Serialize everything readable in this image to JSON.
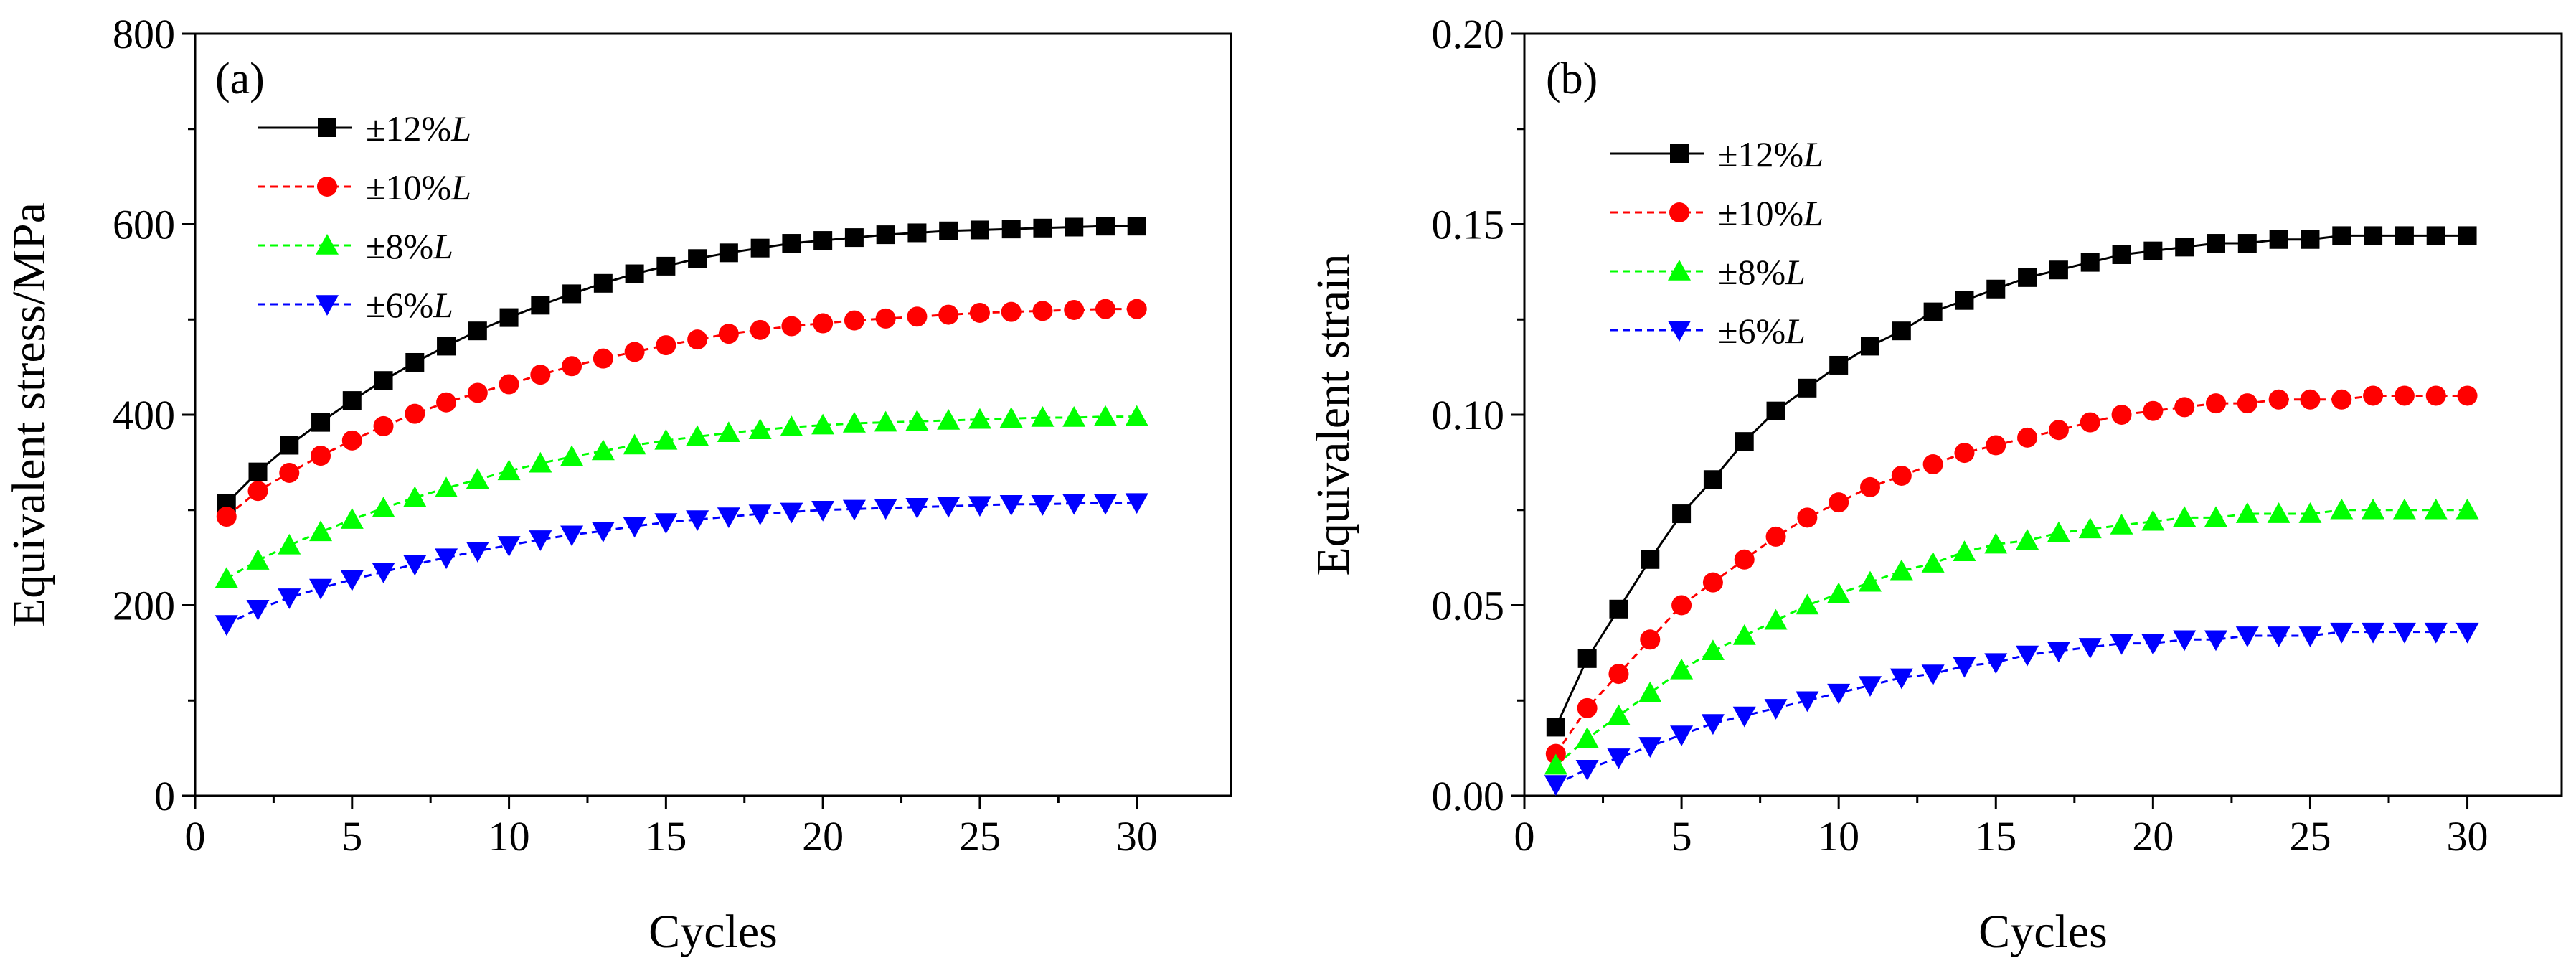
{
  "chart_data": [
    {
      "type": "line",
      "panel_label": "(a)",
      "title": "",
      "xlabel": "Cycles",
      "ylabel": "Equivalent stress/MPa",
      "xlim": [
        0,
        33
      ],
      "ylim": [
        0,
        800
      ],
      "xticks": [
        0,
        5,
        10,
        15,
        20,
        25,
        30
      ],
      "yticks": [
        0,
        200,
        400,
        600,
        800
      ],
      "grid": false,
      "legend": "top-left",
      "x": [
        1,
        2,
        3,
        4,
        5,
        6,
        7,
        8,
        9,
        10,
        11,
        12,
        13,
        14,
        15,
        16,
        17,
        18,
        19,
        20,
        21,
        22,
        23,
        24,
        25,
        26,
        27,
        28,
        29,
        30
      ],
      "series": [
        {
          "name": "±12%",
          "suffix": "L",
          "color": "#000000",
          "marker": "square",
          "line": "solid",
          "values": [
            307,
            340,
            368,
            392,
            415,
            436,
            455,
            472,
            488,
            502,
            515,
            527,
            538,
            548,
            556,
            564,
            570,
            575,
            580,
            583,
            586,
            589,
            591,
            593,
            594,
            595,
            596,
            597,
            598,
            598
          ]
        },
        {
          "name": "±10%",
          "suffix": "L",
          "color": "#ff0000",
          "marker": "circle",
          "line": "dashed",
          "values": [
            293,
            320,
            339,
            357,
            373,
            388,
            401,
            413,
            423,
            432,
            442,
            451,
            459,
            466,
            473,
            479,
            485,
            489,
            493,
            496,
            499,
            501,
            503,
            505,
            507,
            508,
            509,
            510,
            511,
            511
          ]
        },
        {
          "name": "±8%",
          "suffix": "L",
          "color": "#00ff00",
          "marker": "triangle-up",
          "line": "dashed",
          "values": [
            228,
            247,
            263,
            277,
            290,
            302,
            313,
            323,
            332,
            341,
            349,
            356,
            362,
            368,
            373,
            377,
            381,
            384,
            387,
            389,
            391,
            392,
            393,
            394,
            395,
            396,
            397,
            397,
            398,
            398
          ]
        },
        {
          "name": "±6%",
          "suffix": "L",
          "color": "#0000ff",
          "marker": "triangle-down",
          "line": "dashed",
          "values": [
            180,
            196,
            208,
            218,
            227,
            235,
            243,
            250,
            257,
            263,
            269,
            274,
            278,
            283,
            287,
            290,
            293,
            296,
            298,
            300,
            301,
            302,
            303,
            304,
            305,
            306,
            306,
            307,
            307,
            308
          ]
        }
      ]
    },
    {
      "type": "line",
      "panel_label": "(b)",
      "title": "",
      "xlabel": "Cycles",
      "ylabel": "Equivalent strain",
      "xlim": [
        0,
        33
      ],
      "ylim": [
        0,
        0.2
      ],
      "xticks": [
        0,
        5,
        10,
        15,
        20,
        25,
        30
      ],
      "yticks": [
        0,
        0.05,
        0.1,
        0.15,
        0.2
      ],
      "ytick_labels": [
        "0.00",
        "0.05",
        "0.10",
        "0.15",
        "0.20"
      ],
      "grid": false,
      "legend": "top-left",
      "x": [
        1,
        2,
        3,
        4,
        5,
        6,
        7,
        8,
        9,
        10,
        11,
        12,
        13,
        14,
        15,
        16,
        17,
        18,
        19,
        20,
        21,
        22,
        23,
        24,
        25,
        26,
        27,
        28,
        29,
        30
      ],
      "series": [
        {
          "name": "±12%",
          "suffix": "L",
          "color": "#000000",
          "marker": "square",
          "line": "solid",
          "values": [
            0.018,
            0.036,
            0.049,
            0.062,
            0.074,
            0.083,
            0.093,
            0.101,
            0.107,
            0.113,
            0.118,
            0.122,
            0.127,
            0.13,
            0.133,
            0.136,
            0.138,
            0.14,
            0.142,
            0.143,
            0.144,
            0.145,
            0.145,
            0.146,
            0.146,
            0.147,
            0.147,
            0.147,
            0.147,
            0.147
          ]
        },
        {
          "name": "±10%",
          "suffix": "L",
          "color": "#ff0000",
          "marker": "circle",
          "line": "dashed",
          "values": [
            0.011,
            0.023,
            0.032,
            0.041,
            0.05,
            0.056,
            0.062,
            0.068,
            0.073,
            0.077,
            0.081,
            0.084,
            0.087,
            0.09,
            0.092,
            0.094,
            0.096,
            0.098,
            0.1,
            0.101,
            0.102,
            0.103,
            0.103,
            0.104,
            0.104,
            0.104,
            0.105,
            0.105,
            0.105,
            0.105
          ]
        },
        {
          "name": "±8%",
          "suffix": "L",
          "color": "#00ff00",
          "marker": "triangle-up",
          "line": "dashed",
          "values": [
            0.008,
            0.015,
            0.021,
            0.027,
            0.033,
            0.038,
            0.042,
            0.046,
            0.05,
            0.053,
            0.056,
            0.059,
            0.061,
            0.064,
            0.066,
            0.067,
            0.069,
            0.07,
            0.071,
            0.072,
            0.073,
            0.073,
            0.074,
            0.074,
            0.074,
            0.075,
            0.075,
            0.075,
            0.075,
            0.075
          ]
        },
        {
          "name": "±6%",
          "suffix": "L",
          "color": "#0000ff",
          "marker": "triangle-down",
          "line": "dashed",
          "values": [
            0.003,
            0.007,
            0.01,
            0.013,
            0.016,
            0.019,
            0.021,
            0.023,
            0.025,
            0.027,
            0.029,
            0.031,
            0.032,
            0.034,
            0.035,
            0.037,
            0.038,
            0.039,
            0.04,
            0.04,
            0.041,
            0.041,
            0.042,
            0.042,
            0.042,
            0.043,
            0.043,
            0.043,
            0.043,
            0.043
          ]
        }
      ]
    }
  ]
}
